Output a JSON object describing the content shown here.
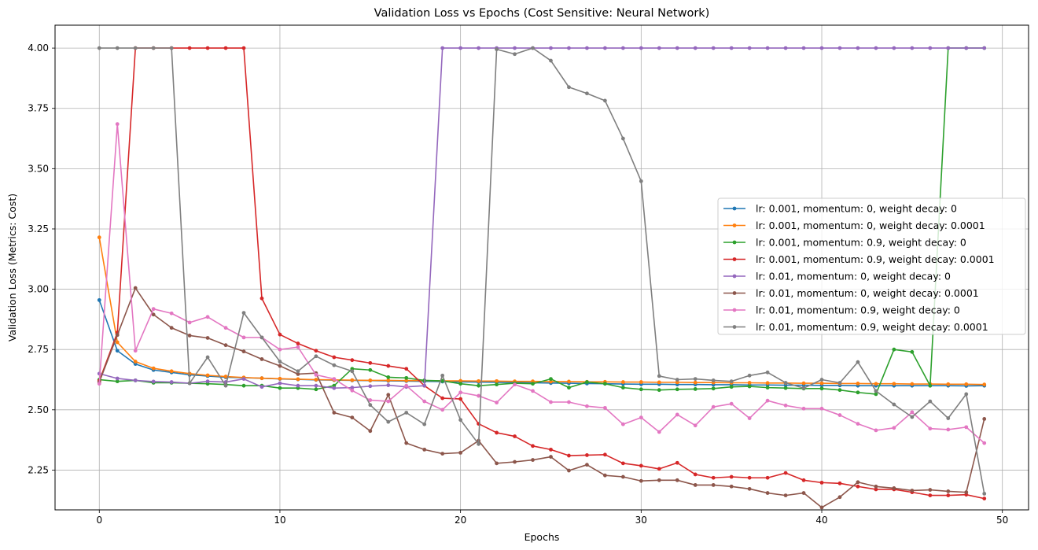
{
  "chart_data": {
    "type": "line",
    "title": "Validation Loss vs Epochs (Cost Sensitive: Neural Network)",
    "xlabel": "Epochs",
    "ylabel": "Validation Loss (Metrics: Cost)",
    "xlim": [
      -2.45,
      51.45
    ],
    "ylim": [
      2.085,
      4.095
    ],
    "xticks": [
      0,
      10,
      20,
      30,
      40,
      50
    ],
    "xtick_labels": [
      "0",
      "10",
      "20",
      "30",
      "40",
      "50"
    ],
    "yticks": [
      2.25,
      2.5,
      2.75,
      3.0,
      3.25,
      3.5,
      3.75,
      4.0
    ],
    "ytick_labels": [
      "2.25",
      "2.50",
      "2.75",
      "3.00",
      "3.25",
      "3.50",
      "3.75",
      "4.00"
    ],
    "grid": true,
    "legend_position": "center-right",
    "x": [
      0,
      1,
      2,
      3,
      4,
      5,
      6,
      7,
      8,
      9,
      10,
      11,
      12,
      13,
      14,
      15,
      16,
      17,
      18,
      19,
      20,
      21,
      22,
      23,
      24,
      25,
      26,
      27,
      28,
      29,
      30,
      31,
      32,
      33,
      34,
      35,
      36,
      37,
      38,
      39,
      40,
      41,
      42,
      43,
      44,
      45,
      46,
      47,
      48,
      49
    ],
    "series": [
      {
        "name": "lr: 0.001, momentum: 0, weight decay: 0",
        "color": "#1f77b4",
        "values": [
          2.955,
          2.745,
          2.69,
          2.665,
          2.655,
          2.645,
          2.64,
          2.635,
          2.633,
          2.631,
          2.628,
          2.626,
          2.624,
          2.623,
          2.622,
          2.621,
          2.62,
          2.619,
          2.618,
          2.617,
          2.616,
          2.615,
          2.614,
          2.613,
          2.612,
          2.611,
          2.61,
          2.609,
          2.608,
          2.607,
          2.606,
          2.606,
          2.605,
          2.605,
          2.604,
          2.604,
          2.603,
          2.603,
          2.602,
          2.602,
          2.601,
          2.601,
          2.6,
          2.6,
          2.6,
          2.6,
          2.6,
          2.6,
          2.599,
          2.6
        ]
      },
      {
        "name": "lr: 0.001, momentum: 0, weight decay: 0.0001",
        "color": "#ff7f0e",
        "values": [
          3.215,
          2.78,
          2.7,
          2.672,
          2.66,
          2.65,
          2.643,
          2.638,
          2.634,
          2.631,
          2.629,
          2.627,
          2.625,
          2.624,
          2.623,
          2.622,
          2.622,
          2.621,
          2.621,
          2.62,
          2.62,
          2.619,
          2.619,
          2.618,
          2.618,
          2.617,
          2.617,
          2.616,
          2.616,
          2.615,
          2.615,
          2.614,
          2.614,
          2.613,
          2.613,
          2.612,
          2.612,
          2.611,
          2.611,
          2.61,
          2.61,
          2.609,
          2.609,
          2.608,
          2.608,
          2.607,
          2.607,
          2.606,
          2.606,
          2.605
        ]
      },
      {
        "name": "lr: 0.001, momentum: 0.9, weight decay: 0",
        "color": "#2ca02c",
        "values": [
          2.625,
          2.618,
          2.622,
          2.612,
          2.612,
          2.61,
          2.608,
          2.605,
          2.6,
          2.6,
          2.59,
          2.59,
          2.585,
          2.6,
          2.67,
          2.665,
          2.635,
          2.632,
          2.622,
          2.62,
          2.608,
          2.6,
          2.605,
          2.61,
          2.608,
          2.628,
          2.592,
          2.615,
          2.608,
          2.592,
          2.585,
          2.582,
          2.585,
          2.586,
          2.588,
          2.595,
          2.597,
          2.592,
          2.59,
          2.588,
          2.588,
          2.582,
          2.572,
          2.565,
          2.75,
          2.74,
          2.6,
          4.0,
          4.0,
          4.0
        ]
      },
      {
        "name": "lr: 0.001, momentum: 0.9, weight decay: 0.0001",
        "color": "#d62728",
        "values": [
          2.62,
          2.82,
          4.0,
          4.0,
          4.0,
          4.0,
          4.0,
          4.0,
          4.0,
          2.962,
          2.812,
          2.775,
          2.745,
          2.718,
          2.706,
          2.694,
          2.682,
          2.67,
          2.6,
          2.548,
          2.545,
          2.442,
          2.405,
          2.39,
          2.35,
          2.335,
          2.31,
          2.312,
          2.314,
          2.278,
          2.268,
          2.255,
          2.28,
          2.232,
          2.218,
          2.222,
          2.218,
          2.218,
          2.238,
          2.208,
          2.198,
          2.195,
          2.182,
          2.17,
          2.17,
          2.158,
          2.145,
          2.145,
          2.148,
          2.132
        ]
      },
      {
        "name": "lr: 0.01, momentum: 0, weight decay: 0",
        "color": "#9467bd",
        "values": [
          2.65,
          2.63,
          2.622,
          2.617,
          2.615,
          2.61,
          2.618,
          2.615,
          2.628,
          2.595,
          2.61,
          2.6,
          2.6,
          2.59,
          2.592,
          2.598,
          2.602,
          2.595,
          2.6,
          4.0,
          4.0,
          4.0,
          4.0,
          4.0,
          4.0,
          4.0,
          4.0,
          4.0,
          4.0,
          4.0,
          4.0,
          4.0,
          4.0,
          4.0,
          4.0,
          4.0,
          4.0,
          4.0,
          4.0,
          4.0,
          4.0,
          4.0,
          4.0,
          4.0,
          4.0,
          4.0,
          4.0,
          4.0,
          4.0,
          4.0
        ]
      },
      {
        "name": "lr: 0.01, momentum: 0, weight decay: 0.0001",
        "color": "#8c564b",
        "values": [
          2.615,
          2.81,
          3.005,
          2.895,
          2.84,
          2.808,
          2.798,
          2.768,
          2.742,
          2.71,
          2.682,
          2.648,
          2.652,
          2.488,
          2.468,
          2.412,
          2.562,
          2.362,
          2.335,
          2.318,
          2.322,
          2.372,
          2.278,
          2.284,
          2.292,
          2.305,
          2.248,
          2.272,
          2.228,
          2.222,
          2.205,
          2.208,
          2.208,
          2.188,
          2.188,
          2.182,
          2.172,
          2.155,
          2.145,
          2.155,
          2.095,
          2.138,
          2.2,
          2.182,
          2.175,
          2.165,
          2.168,
          2.162,
          2.158,
          2.462
        ]
      },
      {
        "name": "lr: 0.01, momentum: 0.9, weight decay: 0",
        "color": "#e377c2",
        "values": [
          2.608,
          3.685,
          2.745,
          2.918,
          2.9,
          2.862,
          2.885,
          2.84,
          2.8,
          2.8,
          2.75,
          2.76,
          2.645,
          2.628,
          2.58,
          2.54,
          2.535,
          2.6,
          2.535,
          2.5,
          2.572,
          2.558,
          2.53,
          2.605,
          2.578,
          2.532,
          2.532,
          2.515,
          2.508,
          2.44,
          2.468,
          2.408,
          2.48,
          2.435,
          2.512,
          2.525,
          2.465,
          2.538,
          2.518,
          2.505,
          2.505,
          2.478,
          2.442,
          2.415,
          2.425,
          2.49,
          2.422,
          2.418,
          2.428,
          2.362
        ]
      },
      {
        "name": "lr: 0.01, momentum: 0.9, weight decay: 0.0001",
        "color": "#7f7f7f",
        "values": [
          4.0,
          4.0,
          4.0,
          4.0,
          4.0,
          2.61,
          2.718,
          2.6,
          2.902,
          2.8,
          2.7,
          2.66,
          2.722,
          2.685,
          2.66,
          2.52,
          2.45,
          2.488,
          2.44,
          2.642,
          2.458,
          2.358,
          3.995,
          3.975,
          4.0,
          3.948,
          3.838,
          3.812,
          3.782,
          3.625,
          3.448,
          2.64,
          2.625,
          2.628,
          2.622,
          2.618,
          2.642,
          2.655,
          2.612,
          2.59,
          2.625,
          2.612,
          2.698,
          2.578,
          2.522,
          2.47,
          2.535,
          2.465,
          2.565,
          2.152
        ]
      }
    ]
  }
}
